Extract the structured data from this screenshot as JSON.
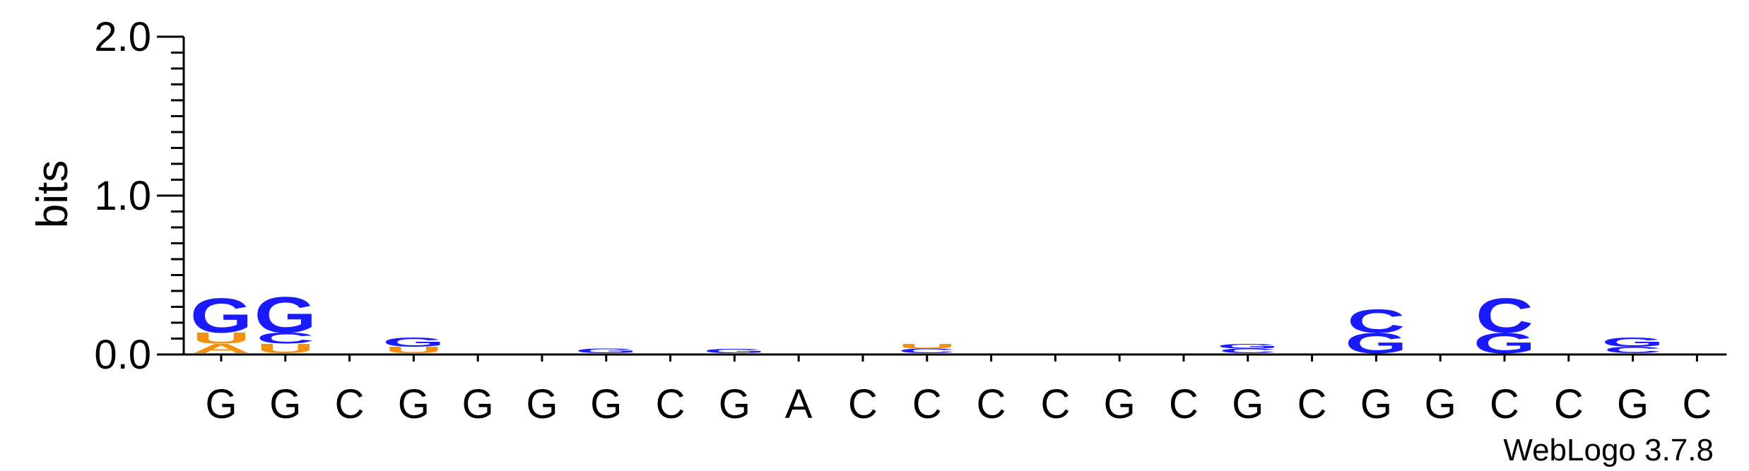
{
  "chart_data": {
    "type": "sequence-logo",
    "ylabel": "bits",
    "ylim": [
      0,
      2.0
    ],
    "y_ticks": [
      "0.0",
      "1.0",
      "2.0"
    ],
    "y_tick_values": [
      0,
      1,
      2
    ],
    "colors": {
      "G": "#1a1aff",
      "C": "#1a1aff",
      "U": "#f5900e",
      "A": "#f5900e"
    },
    "positions": [
      {
        "consensus": "G",
        "letters": [
          [
            "A",
            0.06
          ],
          [
            "U",
            0.07
          ],
          [
            "G",
            0.22
          ]
        ]
      },
      {
        "consensus": "G",
        "letters": [
          [
            "U",
            0.06
          ],
          [
            "C",
            0.07
          ],
          [
            "G",
            0.23
          ]
        ]
      },
      {
        "consensus": "C",
        "letters": []
      },
      {
        "consensus": "G",
        "letters": [
          [
            "U",
            0.04
          ],
          [
            "G",
            0.06
          ]
        ]
      },
      {
        "consensus": "G",
        "letters": []
      },
      {
        "consensus": "G",
        "letters": []
      },
      {
        "consensus": "G",
        "letters": [
          [
            "G",
            0.03
          ]
        ]
      },
      {
        "consensus": "C",
        "letters": []
      },
      {
        "consensus": "G",
        "letters": [
          [
            "G",
            0.025
          ]
        ]
      },
      {
        "consensus": "A",
        "letters": []
      },
      {
        "consensus": "C",
        "letters": []
      },
      {
        "consensus": "C",
        "letters": [
          [
            "C",
            0.03
          ],
          [
            "U",
            0.03
          ]
        ]
      },
      {
        "consensus": "C",
        "letters": []
      },
      {
        "consensus": "C",
        "letters": []
      },
      {
        "consensus": "G",
        "letters": []
      },
      {
        "consensus": "C",
        "letters": []
      },
      {
        "consensus": "G",
        "letters": [
          [
            "C",
            0.03
          ],
          [
            "G",
            0.03
          ]
        ]
      },
      {
        "consensus": "C",
        "letters": []
      },
      {
        "consensus": "G",
        "letters": [
          [
            "G",
            0.13
          ],
          [
            "C",
            0.15
          ]
        ]
      },
      {
        "consensus": "G",
        "letters": []
      },
      {
        "consensus": "C",
        "letters": [
          [
            "G",
            0.13
          ],
          [
            "C",
            0.22
          ]
        ]
      },
      {
        "consensus": "C",
        "letters": []
      },
      {
        "consensus": "G",
        "letters": [
          [
            "C",
            0.04
          ],
          [
            "G",
            0.06
          ]
        ]
      },
      {
        "consensus": "C",
        "letters": []
      }
    ]
  },
  "footer": {
    "credit": "WebLogo 3.7.8"
  }
}
